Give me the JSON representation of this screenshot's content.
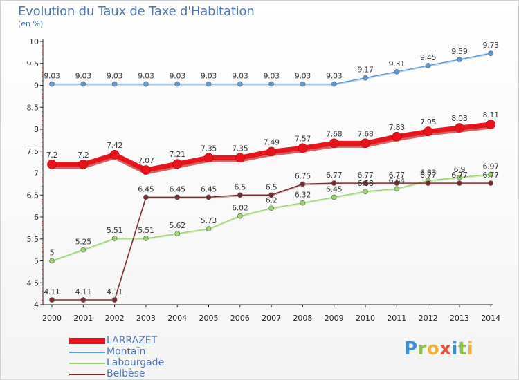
{
  "page": {
    "title": "Evolution du Taux de Taxe d'Habitation",
    "subtitle": "(en %)"
  },
  "logo": {
    "text": "Proxiti",
    "letters": [
      {
        "char": "P",
        "color": "#3a8fd6"
      },
      {
        "char": "r",
        "color": "#8bc34a"
      },
      {
        "char": "o",
        "color": "#f2b134"
      },
      {
        "char": "x",
        "color": "#e5533c"
      },
      {
        "char": "i",
        "color": "#3a8fd6"
      },
      {
        "char": "t",
        "color": "#8bc34a"
      },
      {
        "char": "i",
        "color": "#f2b134"
      }
    ]
  },
  "chart_data": {
    "type": "line",
    "title": "Evolution du Taux de Taxe d'Habitation",
    "subtitle": "(en %)",
    "x": [
      "2000",
      "2001",
      "2002",
      "2003",
      "2004",
      "2005",
      "2006",
      "2007",
      "2008",
      "2009",
      "2010",
      "2011",
      "2012",
      "2013",
      "2014"
    ],
    "ylim": [
      4,
      10
    ],
    "yticks": [
      "4",
      "4.5",
      "5",
      "5.5",
      "6",
      "6.5",
      "7",
      "7.5",
      "8",
      "8.5",
      "9",
      "9.5",
      "10"
    ],
    "grid": false,
    "legend_position": "bottom-left",
    "series": [
      {
        "name": "LARRAZET",
        "color": "#e8141b",
        "values": [
          7.2,
          7.2,
          7.42,
          7.07,
          7.21,
          7.35,
          7.35,
          7.49,
          7.57,
          7.68,
          7.68,
          7.83,
          7.95,
          8.03,
          8.11
        ],
        "labels": [
          "7.2",
          "7.2",
          "7.42",
          "7.07",
          "7.21",
          "7.35",
          "7.35",
          "7.49",
          "7.57",
          "7.68",
          "7.68",
          "7.83",
          "7.95",
          "8.03",
          "8.11"
        ]
      },
      {
        "name": "Montaïn",
        "color": "#5a9ad6",
        "values": [
          9.03,
          9.03,
          9.03,
          9.03,
          9.03,
          9.03,
          9.03,
          9.03,
          9.03,
          9.03,
          9.17,
          9.31,
          9.45,
          9.59,
          9.73
        ],
        "labels": [
          "9.03",
          "9.03",
          "9.03",
          "9.03",
          "9.03",
          "9.03",
          "9.03",
          "9.03",
          "9.03",
          "9.03",
          "9.17",
          "9.31",
          "9.45",
          "9.59",
          "9.73"
        ]
      },
      {
        "name": "Labourgade",
        "color": "#9ad66e",
        "values": [
          5,
          5.25,
          5.51,
          5.51,
          5.62,
          5.73,
          6.02,
          6.2,
          6.32,
          6.45,
          6.58,
          6.64,
          6.83,
          6.9,
          6.97
        ],
        "labels": [
          "5",
          "5.25",
          "5.51",
          "5.51",
          "5.62",
          "5.73",
          "6.02",
          "6.2",
          "6.32",
          "6.45",
          "6.58",
          "6.64",
          "6.83",
          "6.9",
          "6.97"
        ]
      },
      {
        "name": "Belbèse",
        "color": "#7a2a2a",
        "values": [
          4.11,
          4.11,
          4.11,
          6.45,
          6.45,
          6.45,
          6.5,
          6.5,
          6.75,
          6.77,
          6.77,
          6.77,
          6.77,
          6.77,
          6.77
        ],
        "labels": [
          "4.11",
          "4.11",
          "4.11",
          "6.45",
          "6.45",
          "6.45",
          "6.5",
          "6.5",
          "6.75",
          "6.77",
          "6.77",
          "6.77",
          "6.77",
          "6.77",
          "6.77"
        ]
      }
    ]
  }
}
